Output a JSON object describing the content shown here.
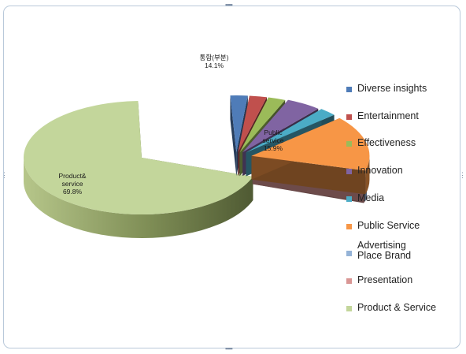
{
  "chart_data": {
    "type": "pie",
    "title": "",
    "slices": [
      {
        "label": "Diverse insights",
        "value": 2.4,
        "color": "#4f7cb8"
      },
      {
        "label": "Entertainment",
        "value": 2.4,
        "color": "#c0504d"
      },
      {
        "label": "Effectiveness",
        "value": 2.4,
        "color": "#9bbb59"
      },
      {
        "label": "Innovation",
        "value": 4.8,
        "color": "#8064a2"
      },
      {
        "label": "Media",
        "value": 2.4,
        "color": "#4bacc6"
      },
      {
        "label": "Public Service",
        "value": 15.9,
        "color": "#f79646"
      },
      {
        "label": "Advertising\nPlace Brand",
        "value": 0.9,
        "color": "#95b3d7"
      },
      {
        "label": "Presentation",
        "value": 0.0,
        "color": "#d99694"
      },
      {
        "label": "Product & Service",
        "value": 69.8,
        "color": "#c3d69b"
      }
    ],
    "data_labels": [
      {
        "text": "Product&\nservice\n69.8%"
      },
      {
        "text": "Public\nservice\n15.9%"
      },
      {
        "text": "통합(부분)\n14.1%"
      }
    ],
    "legend_position": "right"
  }
}
